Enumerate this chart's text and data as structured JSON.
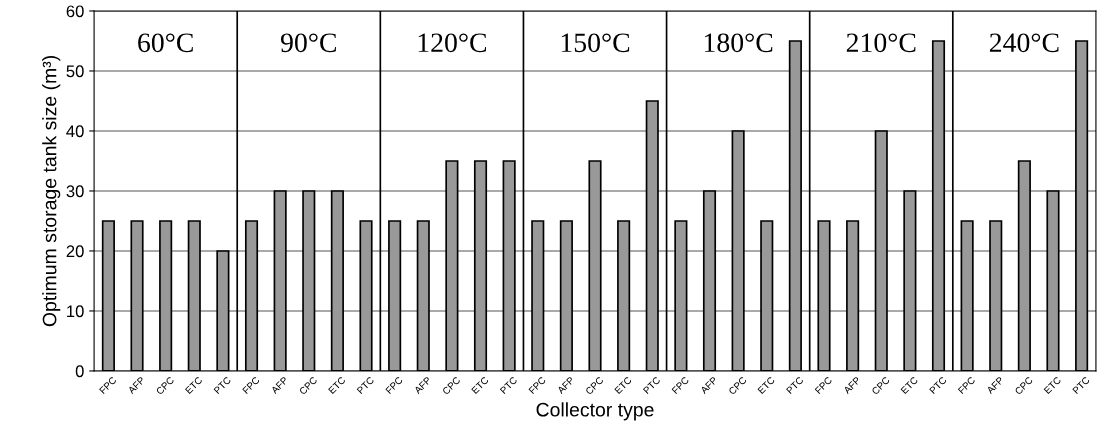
{
  "chart_data": {
    "type": "bar",
    "xlabel": "Collector type",
    "ylabel": "Optimum storage tank size (m³)",
    "categories": [
      "FPC",
      "AFP",
      "CPC",
      "ETC",
      "PTC",
      "FPC",
      "AFP",
      "CPC",
      "ETC",
      "PTC",
      "FPC",
      "AFP",
      "CPC",
      "ETC",
      "PTC",
      "FPC",
      "AFP",
      "CPC",
      "ETC",
      "PTC",
      "FPC",
      "AFP",
      "CPC",
      "ETC",
      "PTC",
      "FPC",
      "AFP",
      "CPC",
      "ETC",
      "PTC",
      "FPC",
      "AFP",
      "CPC",
      "ETC",
      "PTC"
    ],
    "values": [
      25,
      25,
      25,
      25,
      20,
      25,
      30,
      30,
      30,
      25,
      25,
      25,
      35,
      35,
      35,
      25,
      25,
      35,
      25,
      45,
      25,
      30,
      40,
      25,
      55,
      25,
      25,
      40,
      30,
      55,
      25,
      25,
      35,
      30,
      55
    ],
    "color": "#999999",
    "ylim": [
      0,
      60
    ],
    "yticks": [
      0,
      10,
      20,
      30,
      40,
      50,
      60
    ],
    "grid": "y",
    "legend": false,
    "annotations": [
      "60°C",
      "90°C",
      "120°C",
      "150°C",
      "180°C",
      "210°C",
      "240°C"
    ]
  }
}
